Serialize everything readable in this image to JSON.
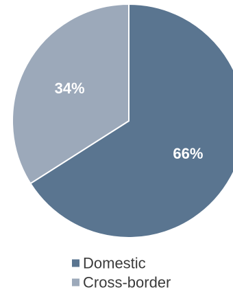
{
  "chart_data": {
    "type": "pie",
    "slices": [
      {
        "label": "Domestic",
        "value": 66,
        "display": "66%",
        "color": "#5a7590"
      },
      {
        "label": "Cross-border",
        "value": 34,
        "display": "34%",
        "color": "#9ca9ba"
      }
    ],
    "start_angle_deg": 0,
    "direction": "clockwise",
    "legend_position": "bottom",
    "title": ""
  }
}
